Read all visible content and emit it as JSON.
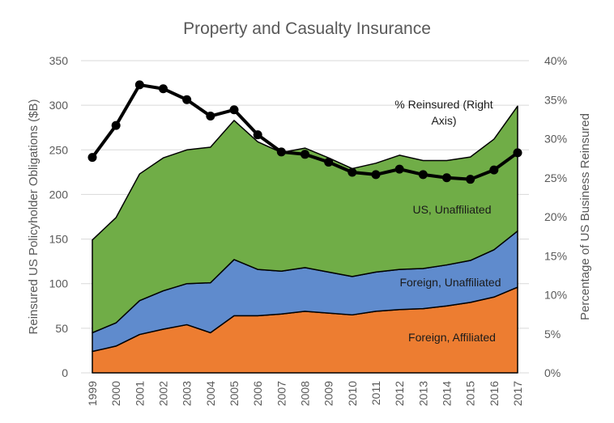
{
  "chart_data": {
    "type": "area",
    "title": "Property and Casualty Insurance",
    "xlabel": "",
    "ylabel": "Reinsured US Policyholder Obligations ($B)",
    "y2label": "Percentage of US Business Reinsured",
    "ylim": [
      0,
      350
    ],
    "y2lim": [
      0,
      40
    ],
    "yticks": [
      "0",
      "50",
      "100",
      "150",
      "200",
      "250",
      "300",
      "350"
    ],
    "y2ticks": [
      "0%",
      "5%",
      "10%",
      "15%",
      "20%",
      "25%",
      "30%",
      "35%",
      "40%"
    ],
    "grid": true,
    "stacked": true,
    "categories": [
      "1999",
      "2000",
      "2001",
      "2002",
      "2003",
      "2004",
      "2005",
      "2006",
      "2007",
      "2008",
      "2009",
      "2010",
      "2011",
      "2012",
      "2013",
      "2014",
      "2015",
      "2016",
      "2017"
    ],
    "series": [
      {
        "name": "Foreign, Affiliated",
        "label": "Foreign, Affiliated",
        "type": "area",
        "color": "#ED7D31",
        "values": [
          24,
          30,
          43,
          49,
          54,
          45,
          64,
          64,
          66,
          69,
          67,
          65,
          69,
          71,
          72,
          75,
          79,
          85,
          96
        ]
      },
      {
        "name": "Foreign, Unaffiliated",
        "label": "Foreign, Unaffiliated",
        "type": "area",
        "color": "#5F8BCD",
        "values": [
          21,
          26,
          38,
          43,
          46,
          56,
          63,
          52,
          48,
          49,
          46,
          43,
          44,
          45,
          45,
          46,
          47,
          53,
          63
        ]
      },
      {
        "name": "US, Unaffiliated",
        "label": "US, Unaffiliated",
        "type": "area",
        "color": "#70AD47",
        "values": [
          104,
          118,
          142,
          149,
          150,
          152,
          156,
          143,
          133,
          134,
          128,
          121,
          122,
          128,
          121,
          117,
          116,
          124,
          140
        ]
      },
      {
        "name": "% Reinsured (Right Axis)",
        "label_lines": [
          "% Reinsured (Right",
          "Axis)"
        ],
        "type": "line",
        "axis": "right",
        "color": "#000000",
        "values": [
          27.6,
          31.7,
          36.9,
          36.4,
          35.0,
          32.9,
          33.7,
          30.5,
          28.3,
          28.0,
          27.0,
          25.7,
          25.4,
          26.1,
          25.4,
          25.0,
          24.8,
          26.0,
          28.2
        ]
      }
    ]
  }
}
